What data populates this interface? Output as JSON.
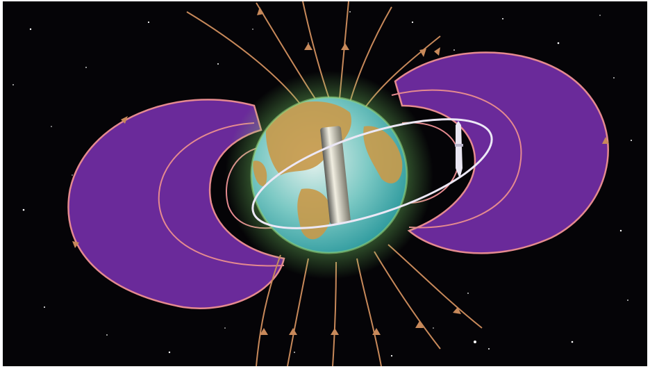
{
  "image": {
    "subject": "",
    "colors": {
      "space": "#050407",
      "belt_fill": "#6a2a9a",
      "belt_edge": "#e58a8f",
      "field_line": "#c8895a",
      "orbit": "#ece8f6",
      "ocean": "#3fb3b8",
      "land": "#c89a4a",
      "glow": "#7ad46a",
      "magnet": "#d9d4c2"
    },
    "icons": [
      "magnetic-field-line",
      "radiation-belt",
      "earth-globe",
      "bar-magnet",
      "satellite-orbit",
      "spacecraft"
    ]
  }
}
